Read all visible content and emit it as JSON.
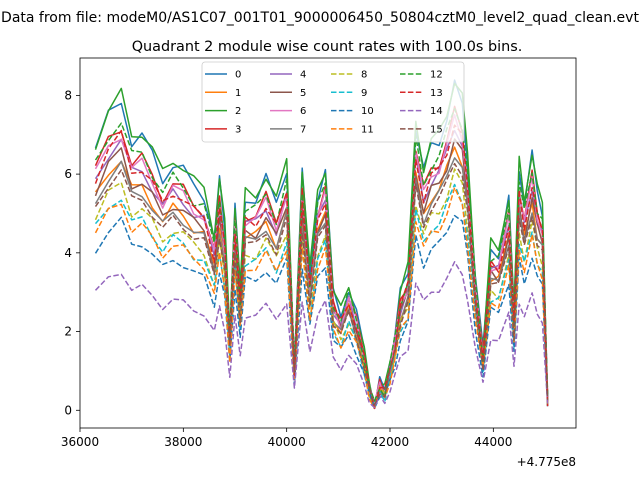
{
  "figure": {
    "suptitle": "Data from file: modeM0/AS1C07_001T01_9000006450_50804cztM0_level2_quad_clean.evt",
    "offset_text": "+4.775e8"
  },
  "chart_data": {
    "type": "line",
    "title": "Quadrant 2 module wise count rates with 100.0s bins.",
    "xlabel": "",
    "ylabel": "",
    "xlim": [
      36000,
      45600
    ],
    "ylim": [
      -0.45,
      8.95
    ],
    "grid": false,
    "legend_position": "top-center",
    "legend_columns": 4,
    "x_ticks": [
      36000,
      38000,
      40000,
      42000,
      44000
    ],
    "y_ticks": [
      0,
      2,
      4,
      6,
      8
    ],
    "x_offset": 477500000,
    "reference_module": 2,
    "x": [
      36300,
      36550,
      36800,
      37000,
      37200,
      37400,
      37600,
      37800,
      38000,
      38200,
      38400,
      38600,
      38700,
      38800,
      38900,
      39000,
      39100,
      39200,
      39400,
      39600,
      39800,
      40000,
      40150,
      40300,
      40450,
      40600,
      40750,
      40900,
      41050,
      41200,
      41350,
      41500,
      41600,
      41700,
      41800,
      41900,
      42000,
      42100,
      42200,
      42350,
      42500,
      42650,
      42800,
      42950,
      43100,
      43250,
      43400,
      43500,
      43650,
      43800,
      43950,
      44100,
      44300,
      44400,
      44500,
      44600,
      44750,
      44850,
      44950,
      45050
    ],
    "module2_values": [
      6.8,
      7.6,
      8.0,
      7.0,
      7.1,
      6.6,
      6.0,
      6.4,
      6.2,
      5.8,
      5.6,
      4.5,
      5.9,
      4.7,
      2.0,
      5.3,
      3.1,
      5.5,
      5.5,
      6.0,
      5.3,
      6.3,
      1.2,
      6.1,
      3.5,
      5.6,
      6.2,
      3.0,
      2.5,
      3.2,
      2.5,
      1.5,
      0.6,
      0.1,
      0.7,
      0.5,
      1.2,
      2.0,
      3.0,
      3.6,
      7.4,
      6.2,
      6.8,
      7.0,
      7.6,
      8.4,
      7.9,
      6.5,
      3.5,
      1.5,
      4.2,
      4.1,
      5.5,
      2.5,
      6.3,
      5.4,
      6.6,
      5.6,
      5.2,
      0.3
    ],
    "series": [
      {
        "name": "0",
        "color": "#1f77b4",
        "dash": "solid",
        "scale": 0.98
      },
      {
        "name": "1",
        "color": "#ff7f0e",
        "dash": "solid",
        "scale": 0.8
      },
      {
        "name": "2",
        "color": "#2ca02c",
        "dash": "solid",
        "scale": 1.0
      },
      {
        "name": "3",
        "color": "#d62728",
        "dash": "solid",
        "scale": 0.9
      },
      {
        "name": "4",
        "color": "#9467bd",
        "dash": "solid",
        "scale": 0.86
      },
      {
        "name": "5",
        "color": "#8c564b",
        "dash": "solid",
        "scale": 0.82
      },
      {
        "name": "6",
        "color": "#e377c2",
        "dash": "solid",
        "scale": 0.88
      },
      {
        "name": "7",
        "color": "#7f7f7f",
        "dash": "solid",
        "scale": 0.78
      },
      {
        "name": "8",
        "color": "#bcbd22",
        "dash": "dashed",
        "scale": 0.72
      },
      {
        "name": "9",
        "color": "#17becf",
        "dash": "dashed",
        "scale": 0.68
      },
      {
        "name": "10",
        "color": "#1f77b4",
        "dash": "dashed",
        "scale": 0.6
      },
      {
        "name": "11",
        "color": "#ff7f0e",
        "dash": "dashed",
        "scale": 0.66
      },
      {
        "name": "12",
        "color": "#2ca02c",
        "dash": "dashed",
        "scale": 0.92
      },
      {
        "name": "13",
        "color": "#d62728",
        "dash": "dashed",
        "scale": 0.87
      },
      {
        "name": "14",
        "color": "#9467bd",
        "dash": "dashed",
        "scale": 0.44
      },
      {
        "name": "15",
        "color": "#8c564b",
        "dash": "dashed",
        "scale": 0.76
      }
    ]
  }
}
